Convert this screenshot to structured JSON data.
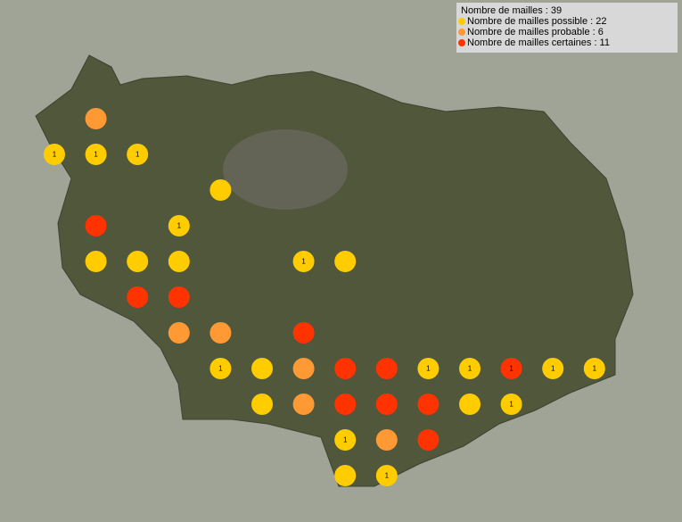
{
  "legend": {
    "total": "Nombre de mailles : 39",
    "items": [
      {
        "text": "Nombre de mailles possible : 22",
        "color": "#ffcc00"
      },
      {
        "text": "Nombre de mailles probable : 6",
        "color": "#ff9933"
      },
      {
        "text": "Nombre de mailles certaines : 11",
        "color": "#ff3300"
      }
    ]
  },
  "grid": [
    [
      null,
      {
        "class": 1
      }
    ],
    [
      {
        "class": 0,
        "label": "1"
      },
      {
        "class": 0,
        "label": "1"
      },
      {
        "class": 0,
        "label": "1"
      }
    ],
    [
      null,
      null,
      null,
      null,
      {
        "class": 0
      }
    ],
    [
      null,
      {
        "class": 2
      },
      null,
      {
        "class": 0,
        "label": "1"
      }
    ],
    [
      null,
      {
        "class": 0
      },
      {
        "class": 0
      },
      {
        "class": 0
      },
      null,
      null,
      {
        "class": 0,
        "label": "1"
      },
      {
        "class": 0
      }
    ],
    [
      null,
      null,
      {
        "class": 2
      },
      {
        "class": 2
      }
    ],
    [
      null,
      null,
      null,
      {
        "class": 1
      },
      {
        "class": 1
      },
      null,
      {
        "class": 2
      }
    ],
    [
      null,
      null,
      null,
      null,
      {
        "class": 0,
        "label": "1"
      },
      {
        "class": 0
      },
      {
        "class": 1
      },
      {
        "class": 2
      },
      {
        "class": 2
      },
      {
        "class": 0,
        "label": "1"
      },
      {
        "class": 0,
        "label": "1"
      },
      {
        "class": 2,
        "label": "1"
      },
      {
        "class": 0,
        "label": "1"
      },
      {
        "class": 0,
        "label": "1"
      }
    ],
    [
      null,
      null,
      null,
      null,
      null,
      {
        "class": 0
      },
      {
        "class": 1
      },
      {
        "class": 2
      },
      {
        "class": 2
      },
      {
        "class": 2
      },
      {
        "class": 0
      },
      {
        "class": 0,
        "label": "1"
      }
    ],
    [
      null,
      null,
      null,
      null,
      null,
      null,
      null,
      {
        "class": 0,
        "label": "1"
      },
      {
        "class": 1
      },
      {
        "class": 2
      }
    ],
    [
      null,
      null,
      null,
      null,
      null,
      null,
      null,
      {
        "class": 0
      },
      {
        "class": 0,
        "label": "1"
      }
    ]
  ]
}
